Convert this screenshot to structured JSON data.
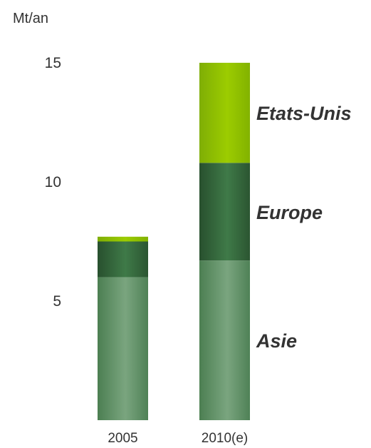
{
  "chart_data": {
    "type": "bar",
    "stacked": true,
    "ylabel": "Mt/an",
    "ylim": [
      0,
      15
    ],
    "yticks": [
      5,
      10,
      15
    ],
    "grid": false,
    "legend": "inline-right",
    "categories": [
      "2005",
      "2010(e)"
    ],
    "series": [
      {
        "name": "Asie",
        "values": [
          6.0,
          6.7
        ],
        "color": "#5e8e64"
      },
      {
        "name": "Europe",
        "values": [
          1.5,
          4.1
        ],
        "color": "#2f6338"
      },
      {
        "name": "Etats-Unis",
        "values": [
          0.2,
          4.2
        ],
        "color": "#8fc400"
      }
    ]
  }
}
